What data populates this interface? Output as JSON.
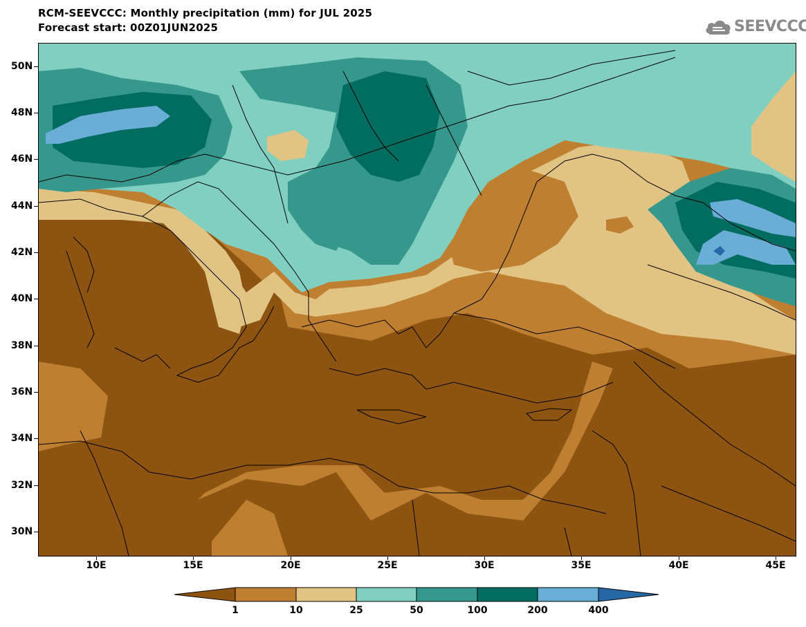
{
  "title_line1": "RCM-SEEVCCC: Monthly precipitation (mm) for JUL 2025",
  "title_line2": "Forecast start: 00Z01JUN2025",
  "logo": {
    "text": "SEEVCCC",
    "icon": "cloud-icon"
  },
  "map": {
    "projection": "lat-lon",
    "lon_range": [
      7,
      46
    ],
    "lat_range": [
      29,
      51
    ],
    "latitude_labels": [
      "50N",
      "48N",
      "46N",
      "44N",
      "42N",
      "40N",
      "38N",
      "36N",
      "34N",
      "32N",
      "30N"
    ],
    "longitude_labels": [
      "10E",
      "15E",
      "20E",
      "25E",
      "30E",
      "35E",
      "40E",
      "45E"
    ]
  },
  "colorbar": {
    "colors": [
      "#8c5410",
      "#be7f30",
      "#e1c484",
      "#80cfc1",
      "#36978c",
      "#016d60",
      "#6aadd6",
      "#2767a6"
    ],
    "labels": [
      "1",
      "10",
      "25",
      "50",
      "100",
      "200",
      "400"
    ],
    "extend": "both"
  }
}
